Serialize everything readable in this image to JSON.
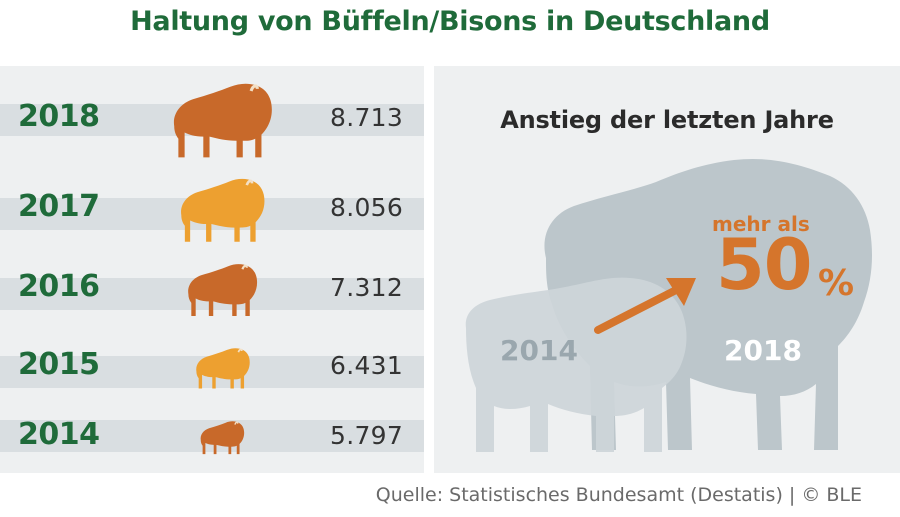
{
  "title": "Haltung von Büffeln/Bisons in Deutschland",
  "colors": {
    "title_green": "#1f6b3a",
    "dark_orange": "#c8692a",
    "light_orange": "#eda030",
    "highlight_orange": "#d5752c",
    "grey_2014": "#9aa7ae",
    "bison_big": "#bcc6cb",
    "bison_small": "#cdd5d9"
  },
  "chart_data": {
    "type": "bar",
    "encoding": "pictograph",
    "categories": [
      "2018",
      "2017",
      "2016",
      "2015",
      "2014"
    ],
    "values": [
      8713,
      8056,
      7312,
      6431,
      5797
    ],
    "value_labels": [
      "8.713",
      "8.056",
      "7.312",
      "6.431",
      "5.797"
    ],
    "icon": "bison-icon",
    "icon_colors": [
      "#c8692a",
      "#eda030",
      "#c8692a",
      "#eda030",
      "#c8692a"
    ]
  },
  "increase": {
    "title": "Anstieg der letzten Jahre",
    "from_year": "2014",
    "to_year": "2018",
    "more_than": "mehr als",
    "percent": "50",
    "percent_sign": "%",
    "icon": "arrow-up-right-icon"
  },
  "source": "Quelle: Statistisches Bundesamt (Destatis) | © BLE"
}
